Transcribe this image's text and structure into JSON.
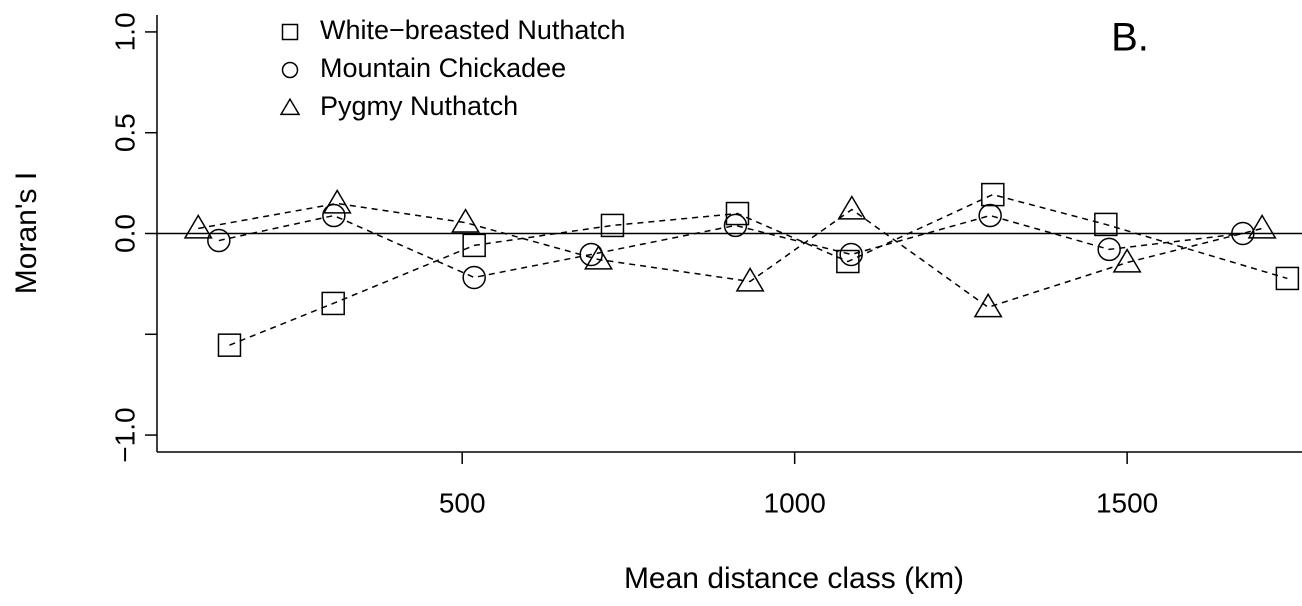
{
  "chart_data": {
    "type": "line",
    "panel_label": "B.",
    "xlabel": "Mean distance class (km)",
    "ylabel": "Moran's I",
    "xlim": [
      41,
      1763
    ],
    "ylim": [
      -1.084,
      1.084
    ],
    "xticks": [
      500,
      1000,
      1500
    ],
    "yticks": [
      {
        "value": -1.0,
        "label": "−1.0"
      },
      {
        "value": -0.5,
        "label": null
      },
      {
        "value": 0.0,
        "label": "0.0"
      },
      {
        "value": 0.5,
        "label": "0.5"
      },
      {
        "value": 1.0,
        "label": "1.0"
      }
    ],
    "hline": 0,
    "legend": "top-left",
    "series": [
      {
        "name": "White−breasted Nuthatch",
        "color": "#000000",
        "marker": "square",
        "x": [
          150,
          306,
          518,
          726,
          914,
          1080,
          1298,
          1468,
          1741
        ],
        "values": [
          -0.554,
          -0.347,
          -0.059,
          0.04,
          0.099,
          -0.139,
          0.193,
          0.045,
          -0.223
        ]
      },
      {
        "name": "Mountain Chickadee",
        "color": "#000000",
        "marker": "circle",
        "x": [
          134,
          307,
          518,
          694,
          911,
          1085,
          1294,
          1473,
          1674
        ],
        "values": [
          -0.035,
          0.089,
          -0.218,
          -0.104,
          0.04,
          -0.104,
          0.089,
          -0.079,
          0.0
        ]
      },
      {
        "name": "Pygmy Nuthatch",
        "color": "#000000",
        "marker": "triangle",
        "x": [
          103,
          312,
          505,
          705,
          933,
          1086,
          1291,
          1500,
          1703
        ],
        "values": [
          0.025,
          0.149,
          0.054,
          -0.129,
          -0.238,
          0.119,
          -0.366,
          -0.144,
          0.025
        ]
      }
    ]
  }
}
